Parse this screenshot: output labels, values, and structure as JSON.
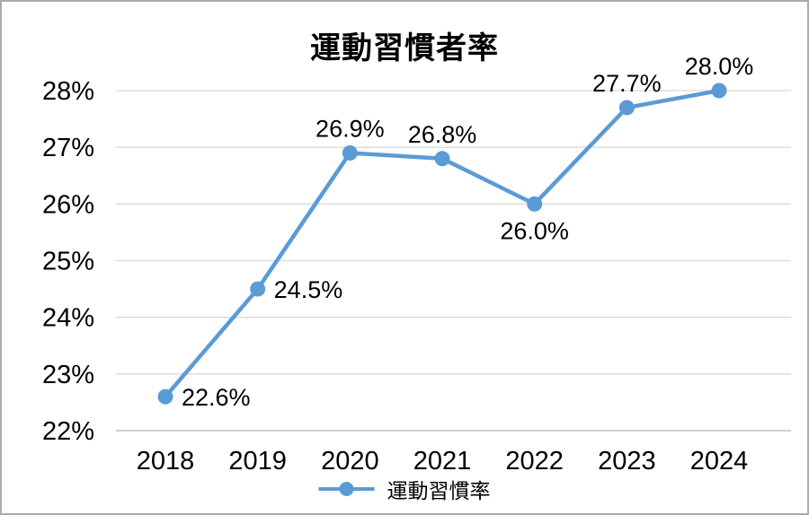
{
  "chart_data": {
    "type": "line",
    "title": "運動習慣者率",
    "series_name": "運動習慣率",
    "categories": [
      "2018",
      "2019",
      "2020",
      "2021",
      "2022",
      "2023",
      "2024"
    ],
    "values": [
      22.6,
      24.5,
      26.9,
      26.8,
      26.0,
      27.7,
      28.0
    ],
    "data_labels": [
      "22.6%",
      "24.5%",
      "26.9%",
      "26.8%",
      "26.0%",
      "27.7%",
      "28.0%"
    ],
    "label_positions": [
      "right",
      "right",
      "above",
      "above",
      "below",
      "above",
      "above"
    ],
    "ylim": [
      22,
      28
    ],
    "ytick_step": 1,
    "ytick_suffix": "%",
    "ytick_labels": [
      "22%",
      "23%",
      "24%",
      "25%",
      "26%",
      "27%",
      "28%"
    ],
    "grid": true,
    "legend_position": "bottom",
    "colors": {
      "line": "#5b9bd5",
      "marker": "#5b9bd5",
      "grid": "#d9d9d9",
      "axis": "#bfbfbf",
      "text": "#000000"
    }
  }
}
